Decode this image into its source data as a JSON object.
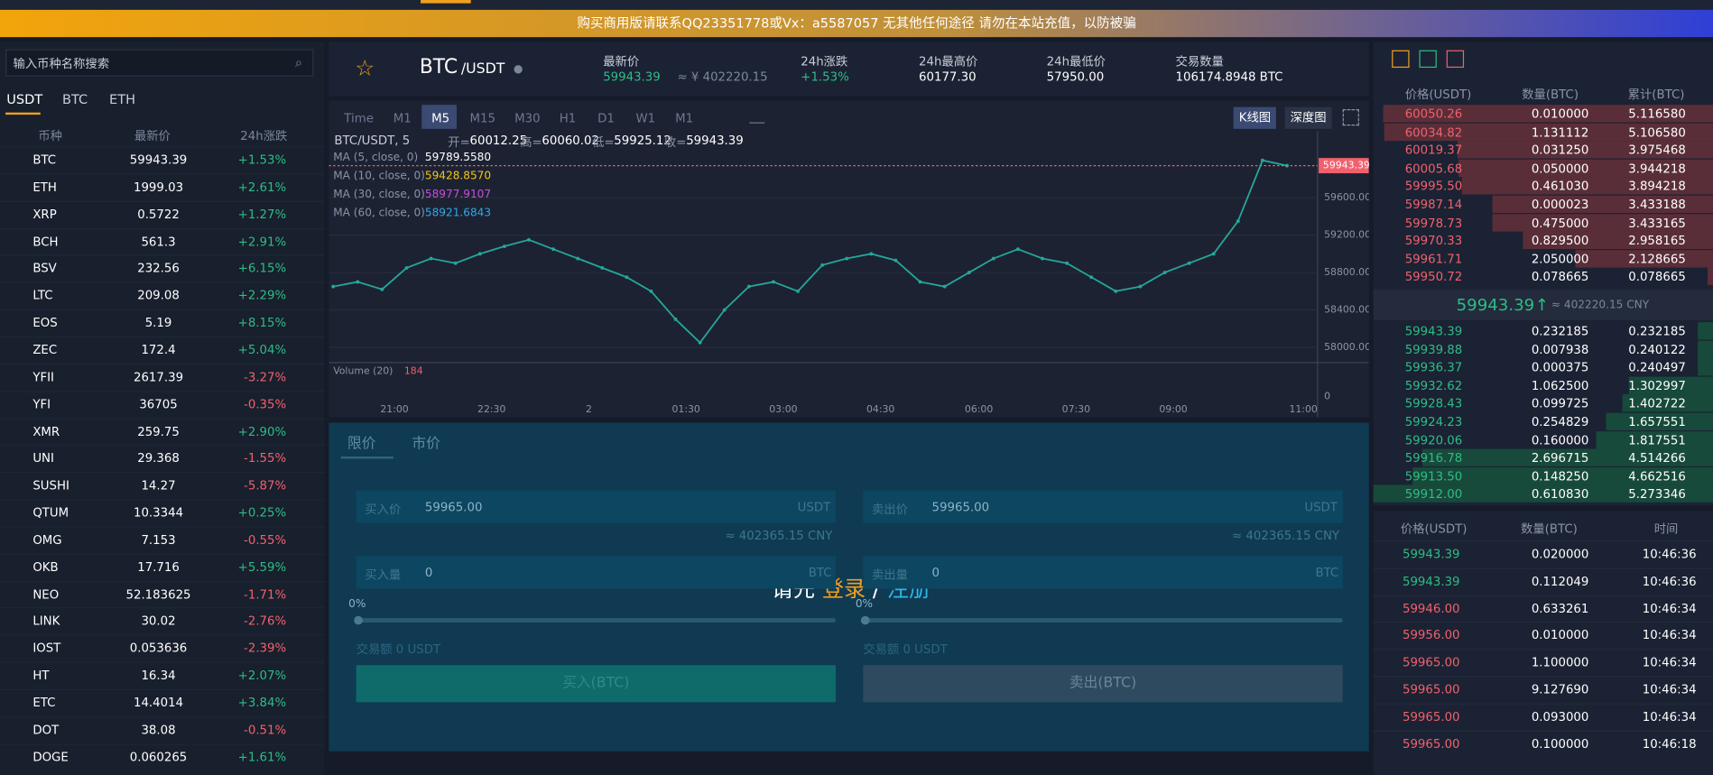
{
  "banner": "购买商用版请联系QQ23351778或Vx：a5587057 无其他任何途径 请勿在本站充值，以防被骗",
  "sidebar": {
    "search_placeholder": "输入币种名称搜索",
    "tabs": [
      "USDT",
      "BTC",
      "ETH"
    ],
    "columns": [
      "币种",
      "最新价",
      "24h涨跌"
    ],
    "pairs": [
      {
        "symbol": "BTC",
        "price": "59943.39",
        "change": "+1.53%"
      },
      {
        "symbol": "ETH",
        "price": "1999.03",
        "change": "+2.61%"
      },
      {
        "symbol": "XRP",
        "price": "0.5722",
        "change": "+1.27%"
      },
      {
        "symbol": "BCH",
        "price": "561.3",
        "change": "+2.91%"
      },
      {
        "symbol": "BSV",
        "price": "232.56",
        "change": "+6.15%"
      },
      {
        "symbol": "LTC",
        "price": "209.08",
        "change": "+2.29%"
      },
      {
        "symbol": "EOS",
        "price": "5.19",
        "change": "+8.15%"
      },
      {
        "symbol": "ZEC",
        "price": "172.4",
        "change": "+5.04%"
      },
      {
        "symbol": "YFII",
        "price": "2617.39",
        "change": "-3.27%"
      },
      {
        "symbol": "YFI",
        "price": "36705",
        "change": "-0.35%"
      },
      {
        "symbol": "XMR",
        "price": "259.75",
        "change": "+2.90%"
      },
      {
        "symbol": "UNI",
        "price": "29.368",
        "change": "-1.55%"
      },
      {
        "symbol": "SUSHI",
        "price": "14.27",
        "change": "-5.87%"
      },
      {
        "symbol": "QTUM",
        "price": "10.3344",
        "change": "+0.25%"
      },
      {
        "symbol": "OMG",
        "price": "7.153",
        "change": "-0.55%"
      },
      {
        "symbol": "OKB",
        "price": "17.716",
        "change": "+5.59%"
      },
      {
        "symbol": "NEO",
        "price": "52.183625",
        "change": "-1.71%"
      },
      {
        "symbol": "LINK",
        "price": "30.02",
        "change": "-2.76%"
      },
      {
        "symbol": "IOST",
        "price": "0.053636",
        "change": "-2.39%"
      },
      {
        "symbol": "HT",
        "price": "16.34",
        "change": "+2.07%"
      },
      {
        "symbol": "ETC",
        "price": "14.4014",
        "change": "+3.84%"
      },
      {
        "symbol": "DOT",
        "price": "38.08",
        "change": "-0.51%"
      },
      {
        "symbol": "DOGE",
        "price": "0.060265",
        "change": "+1.61%"
      }
    ]
  },
  "header": {
    "base": "BTC",
    "quote": "/USDT",
    "stats": [
      {
        "label": "最新价",
        "value": "59943.39",
        "extra": "≈ ¥ 402220.15"
      },
      {
        "label": "24h涨跌",
        "value": "+1.53%"
      },
      {
        "label": "24h最高价",
        "value": "60177.30"
      },
      {
        "label": "24h最低价",
        "value": "57950.00"
      },
      {
        "label": "交易数量",
        "value": "106174.8948 BTC"
      }
    ]
  },
  "toolbar": {
    "intervals": [
      "Time",
      "M1",
      "M5",
      "M15",
      "M30",
      "H1",
      "D1",
      "W1",
      "M1"
    ],
    "views": [
      "K线图",
      "深度图"
    ]
  },
  "kline": {
    "symbol": "BTC/USDT, 5",
    "ohlc": [
      [
        "开=",
        "60012.25"
      ],
      [
        "高=",
        "60060.02"
      ],
      [
        "低=",
        "59925.12"
      ],
      [
        "收=",
        "59943.39"
      ]
    ],
    "ma": [
      {
        "label": "MA (5, close, 0)",
        "value": "59789.5580",
        "color": "#ffffff"
      },
      {
        "label": "MA (10, close, 0)",
        "value": "59428.8570",
        "color": "#f5c518"
      },
      {
        "label": "MA (30, close, 0)",
        "value": "58977.9107",
        "color": "#c84fd8"
      },
      {
        "label": "MA (60, close, 0)",
        "value": "58921.6843",
        "color": "#2fa8e8"
      }
    ],
    "ylim": [
      57860,
      60290
    ],
    "yticks": [
      {
        "value": 59600,
        "label": "59600.00"
      },
      {
        "value": 59200,
        "label": "59200.00"
      },
      {
        "value": 58800,
        "label": "58800.00"
      },
      {
        "value": 58400,
        "label": "58400.00"
      },
      {
        "value": 58000,
        "label": "58000.00"
      }
    ],
    "xticks": [
      "21:00",
      "22:30",
      "2",
      "01:30",
      "03:00",
      "04:30",
      "06:00",
      "07:30",
      "09:00",
      "11:00"
    ],
    "close": [
      58650,
      58700,
      58620,
      58850,
      58950,
      58900,
      59000,
      59080,
      59150,
      59050,
      58950,
      58850,
      58750,
      58600,
      58300,
      58050,
      58400,
      58650,
      58700,
      58600,
      58880,
      58950,
      59000,
      58930,
      58700,
      58650,
      58800,
      58950,
      59050,
      58950,
      58900,
      58750,
      58600,
      58650,
      58800,
      58900,
      59000,
      59350,
      60000,
      59943.39
    ],
    "line_color": "#26a69a",
    "last": {
      "value": 59943.39,
      "label": "59943.39"
    },
    "volume_label": "Volume (20)",
    "volume_value": "184",
    "volume_yticks": [
      0
    ]
  },
  "trade": {
    "tabs": [
      "限价",
      "市价"
    ],
    "buy": {
      "price_label": "买入价",
      "price": "59965.00",
      "unit": "USDT",
      "cny": "≈ 402365.15 CNY",
      "amount_label": "买入量",
      "amount": "0",
      "amount_unit": "BTC",
      "percent": "0%",
      "total": "交易额 0 USDT",
      "button": "买入(BTC)"
    },
    "sell": {
      "price_label": "卖出价",
      "price": "59965.00",
      "unit": "USDT",
      "cny": "≈ 402365.15 CNY",
      "amount_label": "卖出量",
      "amount": "0",
      "amount_unit": "BTC",
      "percent": "0%",
      "total": "交易额 0 USDT",
      "button": "卖出(BTC)"
    },
    "login": {
      "prefix": "请先",
      "login": "登录",
      "sep": "/",
      "register": "注册"
    }
  },
  "orderbook": {
    "columns": [
      "价格(USDT)",
      "数量(BTC)",
      "累计(BTC)"
    ],
    "asks": [
      [
        "60050.26",
        "0.010000",
        5.11658,
        "5.116580"
      ],
      [
        "60034.82",
        "1.131112",
        5.10658,
        "5.106580"
      ],
      [
        "60019.37",
        "0.031250",
        3.975468,
        "3.975468"
      ],
      [
        "60005.68",
        "0.050000",
        3.944218,
        "3.944218"
      ],
      [
        "59995.50",
        "0.461030",
        3.894218,
        "3.894218"
      ],
      [
        "59987.14",
        "0.000023",
        3.433188,
        "3.433188"
      ],
      [
        "59978.73",
        "0.475000",
        3.433165,
        "3.433165"
      ],
      [
        "59970.33",
        "0.829500",
        2.958165,
        "2.958165"
      ],
      [
        "59961.71",
        "2.050000",
        2.128665,
        "2.128665"
      ],
      [
        "59950.72",
        "0.078665",
        0.078665,
        "0.078665"
      ]
    ],
    "mid": {
      "price": "59943.39",
      "arrow": "↑",
      "cny": "≈ 402220.15 CNY"
    },
    "bids": [
      [
        "59943.39",
        "0.232185",
        0.232185,
        "0.232185"
      ],
      [
        "59939.88",
        "0.007938",
        0.240122,
        "0.240122"
      ],
      [
        "59936.37",
        "0.000375",
        0.240497,
        "0.240497"
      ],
      [
        "59932.62",
        "1.062500",
        1.302997,
        "1.302997"
      ],
      [
        "59928.43",
        "0.099725",
        1.402722,
        "1.402722"
      ],
      [
        "59924.23",
        "0.254829",
        1.657551,
        "1.657551"
      ],
      [
        "59920.06",
        "0.160000",
        1.817551,
        "1.817551"
      ],
      [
        "59916.78",
        "2.696715",
        4.514266,
        "4.514266"
      ],
      [
        "59913.50",
        "0.148250",
        4.662516,
        "4.662516"
      ],
      [
        "59912.00",
        "0.610830",
        5.273346,
        "5.273346"
      ]
    ]
  },
  "trades": {
    "columns": [
      "价格(USDT)",
      "数量(BTC)",
      "时间"
    ],
    "rows": [
      {
        "price": "59943.39",
        "amount": "0.020000",
        "time": "10:46:36",
        "color": "#2dbd85"
      },
      {
        "price": "59943.39",
        "amount": "0.112049",
        "time": "10:46:36",
        "color": "#2dbd85"
      },
      {
        "price": "59946.00",
        "amount": "0.633261",
        "time": "10:46:34",
        "color": "#f0616d"
      },
      {
        "price": "59956.00",
        "amount": "0.010000",
        "time": "10:46:34",
        "color": "#f0616d"
      },
      {
        "price": "59965.00",
        "amount": "1.100000",
        "time": "10:46:34",
        "color": "#f0616d"
      },
      {
        "price": "59965.00",
        "amount": "9.127690",
        "time": "10:46:34",
        "color": "#f0616d"
      },
      {
        "price": "59965.00",
        "amount": "0.093000",
        "time": "10:46:34",
        "color": "#f0616d"
      },
      {
        "price": "59965.00",
        "amount": "0.100000",
        "time": "10:46:18",
        "color": "#f0616d"
      }
    ]
  }
}
